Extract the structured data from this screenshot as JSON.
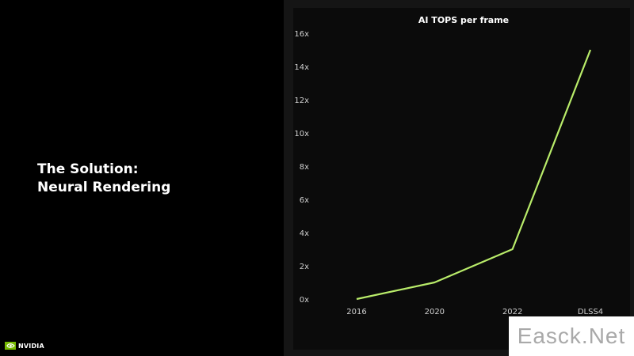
{
  "slide": {
    "heading_line1": "The Solution:",
    "heading_line2": "Neural Rendering",
    "logo_text": "NVIDIA",
    "watermark_text": "Easck.Net"
  },
  "colors": {
    "background": "#000000",
    "line": "#b9ec6a",
    "nvidia_green": "#76b900"
  },
  "chart_data": {
    "type": "line",
    "title": "AI TOPS per frame",
    "xlabel": "",
    "ylabel": "",
    "categories": [
      "2016",
      "2020",
      "2022",
      "DLSS4"
    ],
    "series": [
      {
        "values": [
          0,
          1,
          3,
          15
        ]
      }
    ],
    "ylim": [
      0,
      16
    ],
    "yticks": [
      "0x",
      "2x",
      "4x",
      "6x",
      "8x",
      "10x",
      "12x",
      "14x",
      "16x"
    ],
    "grid": false,
    "legend": "none"
  }
}
